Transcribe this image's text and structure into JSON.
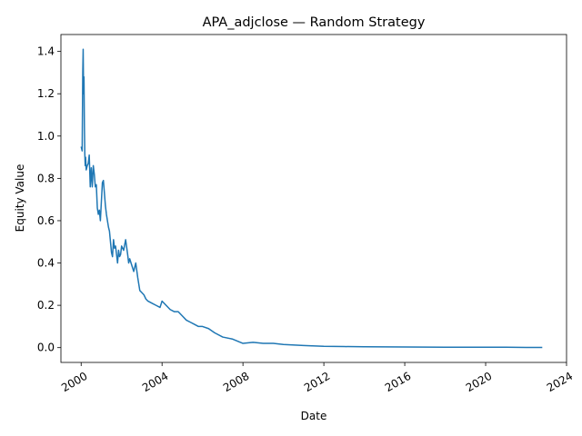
{
  "chart_data": {
    "type": "line",
    "title": "APA_adjclose — Random Strategy",
    "xlabel": "Date",
    "ylabel": "Equity Value",
    "grid": false,
    "legend": "none",
    "line_color": "#1f77b4",
    "x_ticks": [
      "2000",
      "2004",
      "2008",
      "2012",
      "2016",
      "2020",
      "2024"
    ],
    "y_ticks": [
      "0.0",
      "0.2",
      "0.4",
      "0.6",
      "0.8",
      "1.0",
      "1.2",
      "1.4"
    ],
    "xlim": [
      1999.0,
      2024.0
    ],
    "ylim": [
      -0.07,
      1.48
    ],
    "series": [
      {
        "x": [
          2000.0,
          2000.05,
          2000.08,
          2000.1,
          2000.12,
          2000.14,
          2000.16,
          2000.18,
          2000.2,
          2000.22,
          2000.25,
          2000.3,
          2000.35,
          2000.4,
          2000.45,
          2000.5,
          2000.55,
          2000.6,
          2000.65,
          2000.7,
          2000.75,
          2000.8,
          2000.85,
          2000.9,
          2000.95,
          2001.0,
          2001.05,
          2001.1,
          2001.15,
          2001.2,
          2001.25,
          2001.3,
          2001.35,
          2001.4,
          2001.45,
          2001.5,
          2001.55,
          2001.6,
          2001.65,
          2001.7,
          2001.75,
          2001.8,
          2001.85,
          2001.9,
          2001.95,
          2002.0,
          2002.1,
          2002.2,
          2002.3,
          2002.35,
          2002.4,
          2002.5,
          2002.6,
          2002.7,
          2002.8,
          2002.9,
          2003.0,
          2003.1,
          2003.2,
          2003.3,
          2003.5,
          2003.7,
          2003.9,
          2004.0,
          2004.2,
          2004.4,
          2004.6,
          2004.8,
          2005.0,
          2005.2,
          2005.4,
          2005.6,
          2005.8,
          2006.0,
          2006.3,
          2006.6,
          2007.0,
          2007.5,
          2008.0,
          2008.5,
          2009.0,
          2009.5,
          2010.0,
          2011.0,
          2012.0,
          2013.0,
          2014.0,
          2016.0,
          2018.0,
          2020.0,
          2021.0,
          2022.0,
          2022.8
        ],
        "y": [
          0.95,
          0.93,
          1.3,
          1.41,
          1.2,
          1.28,
          1.05,
          0.92,
          0.86,
          0.9,
          0.84,
          0.86,
          0.87,
          0.91,
          0.76,
          0.85,
          0.76,
          0.86,
          0.82,
          0.76,
          0.77,
          0.66,
          0.63,
          0.65,
          0.6,
          0.69,
          0.78,
          0.79,
          0.73,
          0.67,
          0.63,
          0.6,
          0.57,
          0.55,
          0.5,
          0.45,
          0.43,
          0.51,
          0.47,
          0.48,
          0.44,
          0.4,
          0.46,
          0.43,
          0.44,
          0.48,
          0.46,
          0.51,
          0.44,
          0.4,
          0.42,
          0.39,
          0.36,
          0.4,
          0.33,
          0.27,
          0.26,
          0.25,
          0.23,
          0.22,
          0.21,
          0.2,
          0.19,
          0.22,
          0.2,
          0.18,
          0.17,
          0.17,
          0.15,
          0.13,
          0.12,
          0.11,
          0.1,
          0.1,
          0.09,
          0.07,
          0.05,
          0.04,
          0.02,
          0.025,
          0.02,
          0.02,
          0.015,
          0.01,
          0.006,
          0.005,
          0.004,
          0.003,
          0.002,
          0.002,
          0.002,
          0.001,
          0.001
        ]
      }
    ]
  }
}
